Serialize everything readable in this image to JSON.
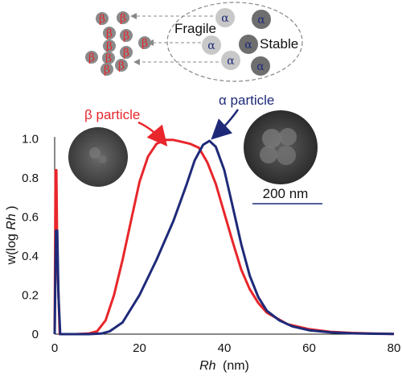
{
  "chart_data": {
    "type": "line",
    "xlim": [
      0,
      80
    ],
    "ylim": [
      0,
      1.05
    ],
    "x_ticks": [
      "0",
      "20",
      "40",
      "60",
      "80"
    ],
    "y_ticks": [
      "0",
      "0.2",
      "0.4",
      "0.6",
      "0.8",
      "1.0"
    ],
    "xlabel_italic": "Rh",
    "xlabel_unit": "(nm)",
    "ylabel_prefix": "w(log ",
    "ylabel_italic": "Rh",
    "ylabel_suffix": ")",
    "grid": false,
    "series": [
      {
        "name": "β particle",
        "color": "#e8262b",
        "x": [
          0,
          0.2,
          0.4,
          0.6,
          1.2,
          5,
          8,
          10,
          12,
          14,
          16,
          18,
          20,
          22,
          24,
          26,
          28,
          30,
          32,
          34,
          36,
          38,
          40,
          42,
          44,
          46,
          48,
          50,
          55,
          60,
          65,
          70,
          75,
          80
        ],
        "y": [
          0,
          0.84,
          0.84,
          0.4,
          0,
          0,
          0.003,
          0.015,
          0.07,
          0.2,
          0.38,
          0.58,
          0.78,
          0.91,
          0.975,
          0.995,
          0.995,
          0.985,
          0.975,
          0.955,
          0.88,
          0.77,
          0.62,
          0.47,
          0.33,
          0.23,
          0.16,
          0.11,
          0.05,
          0.025,
          0.012,
          0.006,
          0.003,
          0.001
        ]
      },
      {
        "name": "α particle",
        "color": "#1e2a78",
        "x": [
          0,
          0.3,
          0.6,
          0.9,
          1.3,
          8,
          11,
          13,
          16,
          20,
          24,
          28,
          31,
          33,
          35,
          36.5,
          38,
          40,
          42,
          44,
          46,
          48,
          50,
          53,
          56,
          60,
          65,
          70,
          75,
          80
        ],
        "y": [
          0,
          0.53,
          0.53,
          0.2,
          0,
          0,
          0.003,
          0.015,
          0.06,
          0.2,
          0.38,
          0.58,
          0.76,
          0.89,
          0.97,
          0.99,
          0.96,
          0.84,
          0.65,
          0.46,
          0.3,
          0.19,
          0.12,
          0.07,
          0.04,
          0.02,
          0.009,
          0.004,
          0.002,
          0.001
        ]
      }
    ],
    "annotations": {
      "beta_label": "β particle",
      "alpha_label": "α particle",
      "scale_bar": "200 nm"
    }
  },
  "inset": {
    "fragile_label": "Fragile",
    "stable_label": "Stable",
    "beta_symbol": "β",
    "alpha_symbol": "α",
    "colors": {
      "beta_ball": "#8a8a8a",
      "beta_text": "#e8262b",
      "alpha_light": "#c8c8c8",
      "alpha_dark": "#6e6e6e",
      "alpha_text": "#1e2a78",
      "arrow": "#888888"
    }
  }
}
